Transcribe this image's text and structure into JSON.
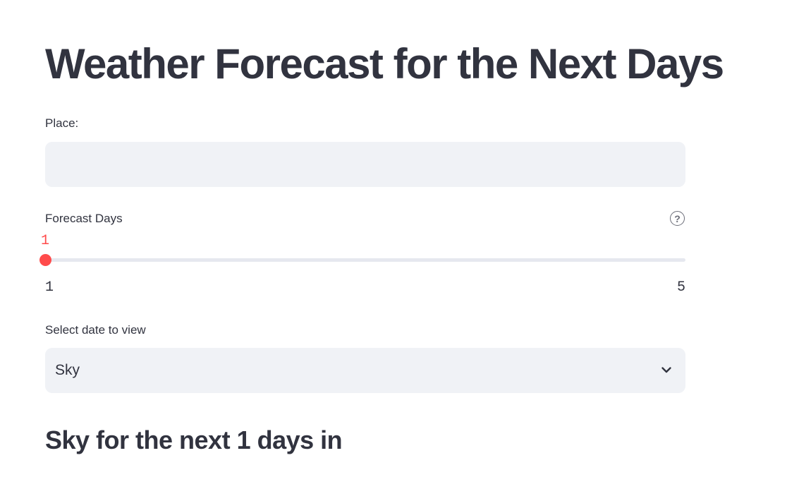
{
  "title": "Weather Forecast for the Next Days",
  "place": {
    "label": "Place:",
    "value": "",
    "placeholder": ""
  },
  "forecast_days": {
    "label": "Forecast Days",
    "help_icon": "question-circle-icon",
    "value": "1",
    "min": "1",
    "max": "5",
    "accent_color": "#ff4b4b"
  },
  "view_select": {
    "label": "Select date to view",
    "selected": "Sky",
    "icon": "chevron-down-icon"
  },
  "subheader": "Sky for the next 1 days in"
}
